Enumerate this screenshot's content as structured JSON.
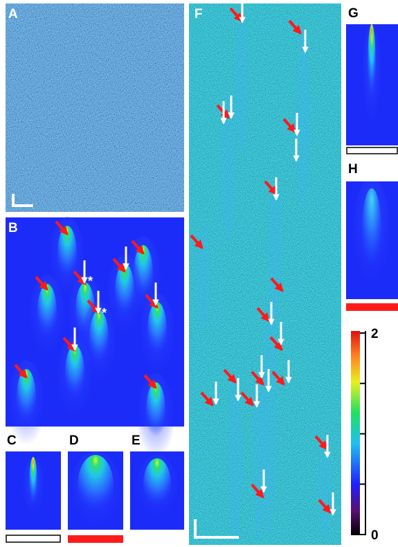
{
  "panels": {
    "labels": [
      "A",
      "B",
      "C",
      "D",
      "E",
      "F",
      "G",
      "H"
    ]
  },
  "asterisks": [
    "*",
    "*"
  ],
  "colorbar": {
    "lim": [
      0,
      2
    ],
    "ticks": [
      0,
      2
    ]
  }
}
